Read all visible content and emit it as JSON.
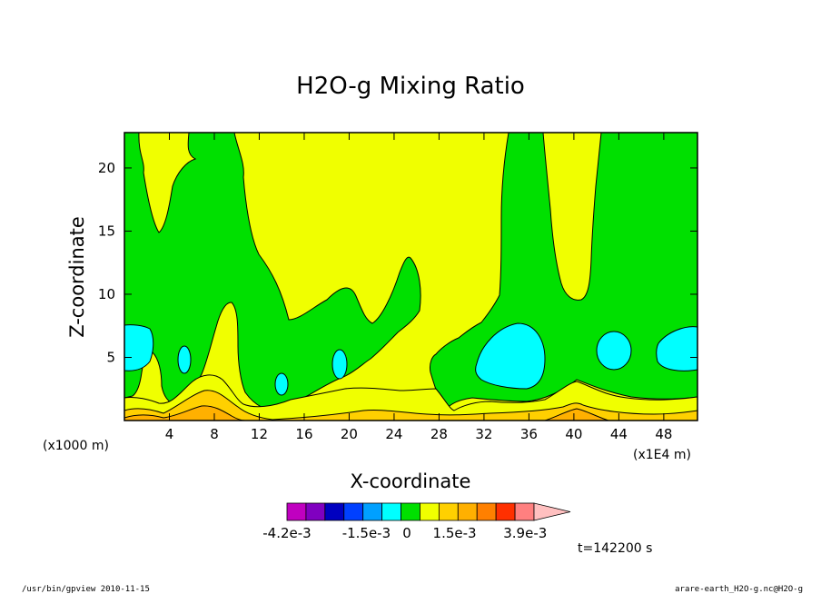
{
  "chart_data": {
    "type": "heatmap",
    "title": "H2O-g Mixing Ratio",
    "xlabel": "X-coordinate",
    "ylabel": "Z-coordinate",
    "x_scale_note": "(x1E4 m)",
    "z_scale_note": "(x1000 m)",
    "xlim": [
      0,
      51
    ],
    "ylim": [
      0,
      22.8
    ],
    "x_ticks": [
      4,
      8,
      12,
      16,
      20,
      24,
      28,
      32,
      36,
      40,
      44,
      48
    ],
    "y_ticks": [
      5,
      10,
      15,
      20
    ],
    "colorbar": {
      "levels": [
        -0.0042,
        -0.0036,
        -0.003,
        -0.0024,
        -0.0018,
        -0.0012,
        -0.0006,
        0,
        0.0006,
        0.0012,
        0.0018,
        0.0024,
        0.003,
        0.0036
      ],
      "tick_labels": [
        "-4.2e-3",
        "-1.5e-3",
        "0",
        "1.5e-3",
        "3.9e-3"
      ],
      "colors": [
        "#c000c0",
        "#8000c0",
        "#0000c0",
        "#0040ff",
        "#00a0ff",
        "#00ffff",
        "#00e000",
        "#f0ff00",
        "#ffd000",
        "#ffb000",
        "#ff8000",
        "#ff3000",
        "#ff8080",
        "#ffc0c0"
      ]
    },
    "regions": {
      "background_green": "#00e000",
      "yellow": "#f0ff00",
      "cyan": "#00ffff",
      "orange_light": "#ffd000",
      "orange": "#ffb000"
    },
    "time_label": "t=142200 s"
  },
  "footer": {
    "left": "/usr/bin/gpview  2010-11-15",
    "right": "arare-earth_H2O-g.nc@H2O-g"
  }
}
